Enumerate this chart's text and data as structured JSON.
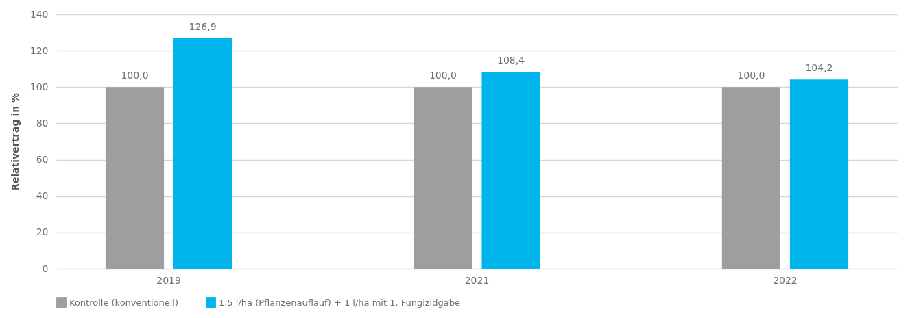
{
  "chart_data": {
    "type": "bar",
    "ylabel": "Relativertrag in %",
    "categories": [
      "2019",
      "2021",
      "2022"
    ],
    "series": [
      {
        "name": "Kontrolle (konventionell)",
        "color": "#9d9e9d",
        "values": [
          100.0,
          100.0,
          100.0
        ],
        "value_labels": [
          "100,0",
          "100,0",
          "100,0"
        ]
      },
      {
        "name": "1,5 l/ha (Pflanzenauflauf) + 1 l/ha mit 1. Fungizidgabe",
        "color": "#00b5eb",
        "values": [
          126.9,
          108.4,
          104.2
        ],
        "value_labels": [
          "126,9",
          "108,4",
          "104,2"
        ]
      }
    ],
    "ylim": [
      0,
      140
    ],
    "yticks": [
      0,
      20,
      40,
      60,
      80,
      100,
      120,
      140
    ],
    "grid": "y",
    "legend": "bottom"
  }
}
